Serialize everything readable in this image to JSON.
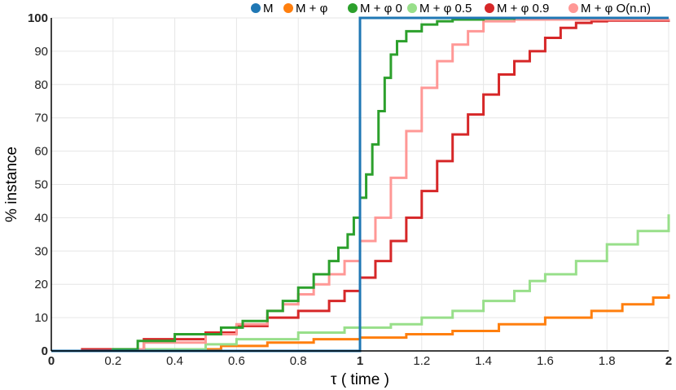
{
  "chart_data": {
    "type": "line",
    "step": true,
    "xlabel": "τ ( time )",
    "ylabel": "% instance",
    "xlim": [
      0,
      2
    ],
    "ylim": [
      0,
      100
    ],
    "xticks": [
      "0",
      "0.2",
      "0.4",
      "0.6",
      "0.8",
      "1",
      "1.2",
      "1.4",
      "1.6",
      "1.8",
      "2"
    ],
    "yticks": [
      "0",
      "10",
      "20",
      "30",
      "40",
      "50",
      "60",
      "70",
      "80",
      "90",
      "100"
    ],
    "grid": true,
    "legend_position": "top",
    "series": [
      {
        "name": "M",
        "color": "#1f77b4",
        "x": [
          0,
          0.999,
          1.0,
          2.0
        ],
        "y": [
          0,
          0,
          100,
          100
        ]
      },
      {
        "name": "M + φ",
        "color": "#ff7f0e",
        "x": [
          0,
          0.3,
          0.55,
          0.7,
          0.85,
          1.0,
          1.15,
          1.3,
          1.45,
          1.6,
          1.75,
          1.85,
          1.95,
          2.0
        ],
        "y": [
          0,
          0.5,
          1.5,
          2.5,
          3.5,
          4.0,
          5.0,
          6.0,
          8.0,
          10.0,
          12.0,
          14.0,
          16.0,
          17.0
        ]
      },
      {
        "name": "M + φ 0",
        "color": "#2ca02c",
        "x": [
          0,
          0.2,
          0.28,
          0.4,
          0.55,
          0.62,
          0.7,
          0.75,
          0.8,
          0.85,
          0.9,
          0.93,
          0.96,
          0.98,
          1.0,
          1.02,
          1.04,
          1.06,
          1.08,
          1.1,
          1.12,
          1.15,
          1.2,
          1.25,
          1.3,
          1.4,
          1.5,
          2.0
        ],
        "y": [
          0,
          0.5,
          3.0,
          5.0,
          7.0,
          9.0,
          12.0,
          15.0,
          19.0,
          23.0,
          27.0,
          31.0,
          35.0,
          40.0,
          46.0,
          53.0,
          62.0,
          72.0,
          82.0,
          89.0,
          93.0,
          96.0,
          98.0,
          99.0,
          99.5,
          99.8,
          100.0,
          100.0
        ]
      },
      {
        "name": "M + φ 0.5",
        "color": "#98df8a",
        "x": [
          0,
          0.3,
          0.5,
          0.6,
          0.8,
          0.95,
          1.1,
          1.2,
          1.3,
          1.4,
          1.5,
          1.55,
          1.6,
          1.7,
          1.8,
          1.9,
          2.0
        ],
        "y": [
          0,
          0.5,
          2.0,
          3.5,
          5.5,
          7.0,
          8.0,
          10.0,
          12.0,
          15.0,
          18.0,
          21.0,
          23.0,
          27.0,
          32.0,
          36.0,
          41.0
        ]
      },
      {
        "name": "M + φ 0.9",
        "color": "#d62728",
        "x": [
          0,
          0.1,
          0.3,
          0.5,
          0.6,
          0.7,
          0.8,
          0.9,
          0.95,
          1.0,
          1.05,
          1.1,
          1.15,
          1.2,
          1.25,
          1.3,
          1.35,
          1.4,
          1.45,
          1.5,
          1.55,
          1.6,
          1.65,
          1.7,
          1.75,
          1.8,
          2.0
        ],
        "y": [
          0,
          0.5,
          3.5,
          5.5,
          7.5,
          10.0,
          12.0,
          15.0,
          18.0,
          22.0,
          27.0,
          33.0,
          40.0,
          48.0,
          57.0,
          65.0,
          71.0,
          77.0,
          83.0,
          87.0,
          90.0,
          94.0,
          97.0,
          98.5,
          99.0,
          99.2,
          99.5
        ]
      },
      {
        "name": "M + φ O(n.n)",
        "color": "#ff9896",
        "x": [
          0,
          0.2,
          0.3,
          0.5,
          0.6,
          0.7,
          0.75,
          0.8,
          0.85,
          0.9,
          0.95,
          1.0,
          1.05,
          1.1,
          1.15,
          1.2,
          1.25,
          1.3,
          1.35,
          1.4,
          1.5,
          2.0
        ],
        "y": [
          0,
          0.5,
          2.5,
          5.0,
          8.0,
          12.0,
          14.0,
          17.0,
          20.0,
          23.0,
          27.0,
          33.0,
          40.0,
          52.0,
          66.0,
          79.0,
          87.0,
          92.0,
          96.0,
          99.0,
          99.5,
          99.8
        ]
      }
    ]
  }
}
